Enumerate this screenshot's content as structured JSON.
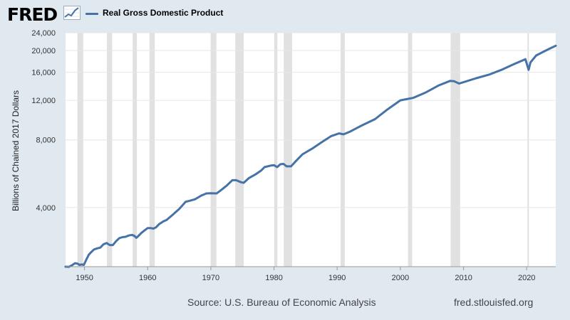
{
  "header": {
    "logo_text": "FRED",
    "logo_icon": "line-chart-icon",
    "legend_label": "Real Gross Domestic Product",
    "legend_color": "#4572a7"
  },
  "footer": {
    "source": "Source: U.S. Bureau of Economic Analysis",
    "url": "fred.stlouisfed.org"
  },
  "chart_data": {
    "type": "line",
    "title": "",
    "xlabel": "",
    "ylabel": "Billions of Chained 2017 Dollars",
    "y_scale": "log",
    "xlim": [
      1947,
      2024.6
    ],
    "ylim": [
      2180,
      24000
    ],
    "grid": true,
    "legend_position": "top-left",
    "plot_background": "#ffffff",
    "line_color": "#4572a7",
    "recession_color": "#e1e1e1",
    "x_ticks": [
      1950,
      1960,
      1970,
      1980,
      1990,
      2000,
      2010,
      2020
    ],
    "x_tick_labels": [
      "1950",
      "1960",
      "1970",
      "1980",
      "1990",
      "2000",
      "2010",
      "2020"
    ],
    "y_ticks": [
      4000,
      8000,
      12000,
      16000,
      20000,
      24000
    ],
    "y_tick_labels": [
      "4,000",
      "8,000",
      "12,000",
      "16,000",
      "20,000",
      "24,000"
    ],
    "recessions": [
      [
        1948.87,
        1949.79
      ],
      [
        1953.54,
        1954.37
      ],
      [
        1957.62,
        1958.29
      ],
      [
        1960.29,
        1961.12
      ],
      [
        1969.96,
        1970.87
      ],
      [
        1973.87,
        1975.21
      ],
      [
        1980.04,
        1980.54
      ],
      [
        1981.54,
        1982.87
      ],
      [
        1990.54,
        1991.21
      ],
      [
        2001.21,
        2001.87
      ],
      [
        2007.96,
        2009.46
      ],
      [
        2020.12,
        2020.29
      ]
    ],
    "series": [
      {
        "name": "Real Gross Domestic Product",
        "points": [
          [
            1947.0,
            2180
          ],
          [
            1947.5,
            2175
          ],
          [
            1948.0,
            2210
          ],
          [
            1948.5,
            2260
          ],
          [
            1948.9,
            2250
          ],
          [
            1949.2,
            2220
          ],
          [
            1949.6,
            2230
          ],
          [
            1949.9,
            2220
          ],
          [
            1950.3,
            2350
          ],
          [
            1950.7,
            2470
          ],
          [
            1951.0,
            2520
          ],
          [
            1951.5,
            2600
          ],
          [
            1952.0,
            2630
          ],
          [
            1952.5,
            2650
          ],
          [
            1953.0,
            2740
          ],
          [
            1953.5,
            2780
          ],
          [
            1954.0,
            2720
          ],
          [
            1954.5,
            2720
          ],
          [
            1955.0,
            2830
          ],
          [
            1955.5,
            2920
          ],
          [
            1956.0,
            2950
          ],
          [
            1956.5,
            2960
          ],
          [
            1957.0,
            3000
          ],
          [
            1957.5,
            3020
          ],
          [
            1957.9,
            2990
          ],
          [
            1958.2,
            2930
          ],
          [
            1958.5,
            2980
          ],
          [
            1959.0,
            3080
          ],
          [
            1959.5,
            3160
          ],
          [
            1960.0,
            3240
          ],
          [
            1960.5,
            3240
          ],
          [
            1960.9,
            3220
          ],
          [
            1961.3,
            3260
          ],
          [
            1961.8,
            3370
          ],
          [
            1962.5,
            3470
          ],
          [
            1963.0,
            3520
          ],
          [
            1964.0,
            3720
          ],
          [
            1965.0,
            3940
          ],
          [
            1966.0,
            4240
          ],
          [
            1966.7,
            4290
          ],
          [
            1967.5,
            4350
          ],
          [
            1968.5,
            4520
          ],
          [
            1969.3,
            4620
          ],
          [
            1970.0,
            4630
          ],
          [
            1970.9,
            4620
          ],
          [
            1971.5,
            4750
          ],
          [
            1972.5,
            5000
          ],
          [
            1973.4,
            5290
          ],
          [
            1974.0,
            5290
          ],
          [
            1974.8,
            5180
          ],
          [
            1975.2,
            5150
          ],
          [
            1976.0,
            5400
          ],
          [
            1977.0,
            5600
          ],
          [
            1978.0,
            5850
          ],
          [
            1978.5,
            6050
          ],
          [
            1979.5,
            6150
          ],
          [
            1980.0,
            6170
          ],
          [
            1980.5,
            6050
          ],
          [
            1981.0,
            6230
          ],
          [
            1981.5,
            6250
          ],
          [
            1982.0,
            6100
          ],
          [
            1982.7,
            6100
          ],
          [
            1983.5,
            6450
          ],
          [
            1984.5,
            6900
          ],
          [
            1986.0,
            7300
          ],
          [
            1987.5,
            7800
          ],
          [
            1989.0,
            8300
          ],
          [
            1990.3,
            8550
          ],
          [
            1991.0,
            8470
          ],
          [
            1992.0,
            8700
          ],
          [
            1994.0,
            9300
          ],
          [
            1996.0,
            9900
          ],
          [
            1998.0,
            10950
          ],
          [
            2000.0,
            12000
          ],
          [
            2001.0,
            12150
          ],
          [
            2002.0,
            12300
          ],
          [
            2004.0,
            13000
          ],
          [
            2006.0,
            13950
          ],
          [
            2007.9,
            14650
          ],
          [
            2008.5,
            14600
          ],
          [
            2009.3,
            14250
          ],
          [
            2010.0,
            14450
          ],
          [
            2012.0,
            15050
          ],
          [
            2014.0,
            15600
          ],
          [
            2016.0,
            16400
          ],
          [
            2018.0,
            17400
          ],
          [
            2019.8,
            18300
          ],
          [
            2020.3,
            16400
          ],
          [
            2020.6,
            17700
          ],
          [
            2021.5,
            19000
          ],
          [
            2022.5,
            19650
          ],
          [
            2023.5,
            20300
          ],
          [
            2024.6,
            21000
          ]
        ]
      }
    ]
  }
}
